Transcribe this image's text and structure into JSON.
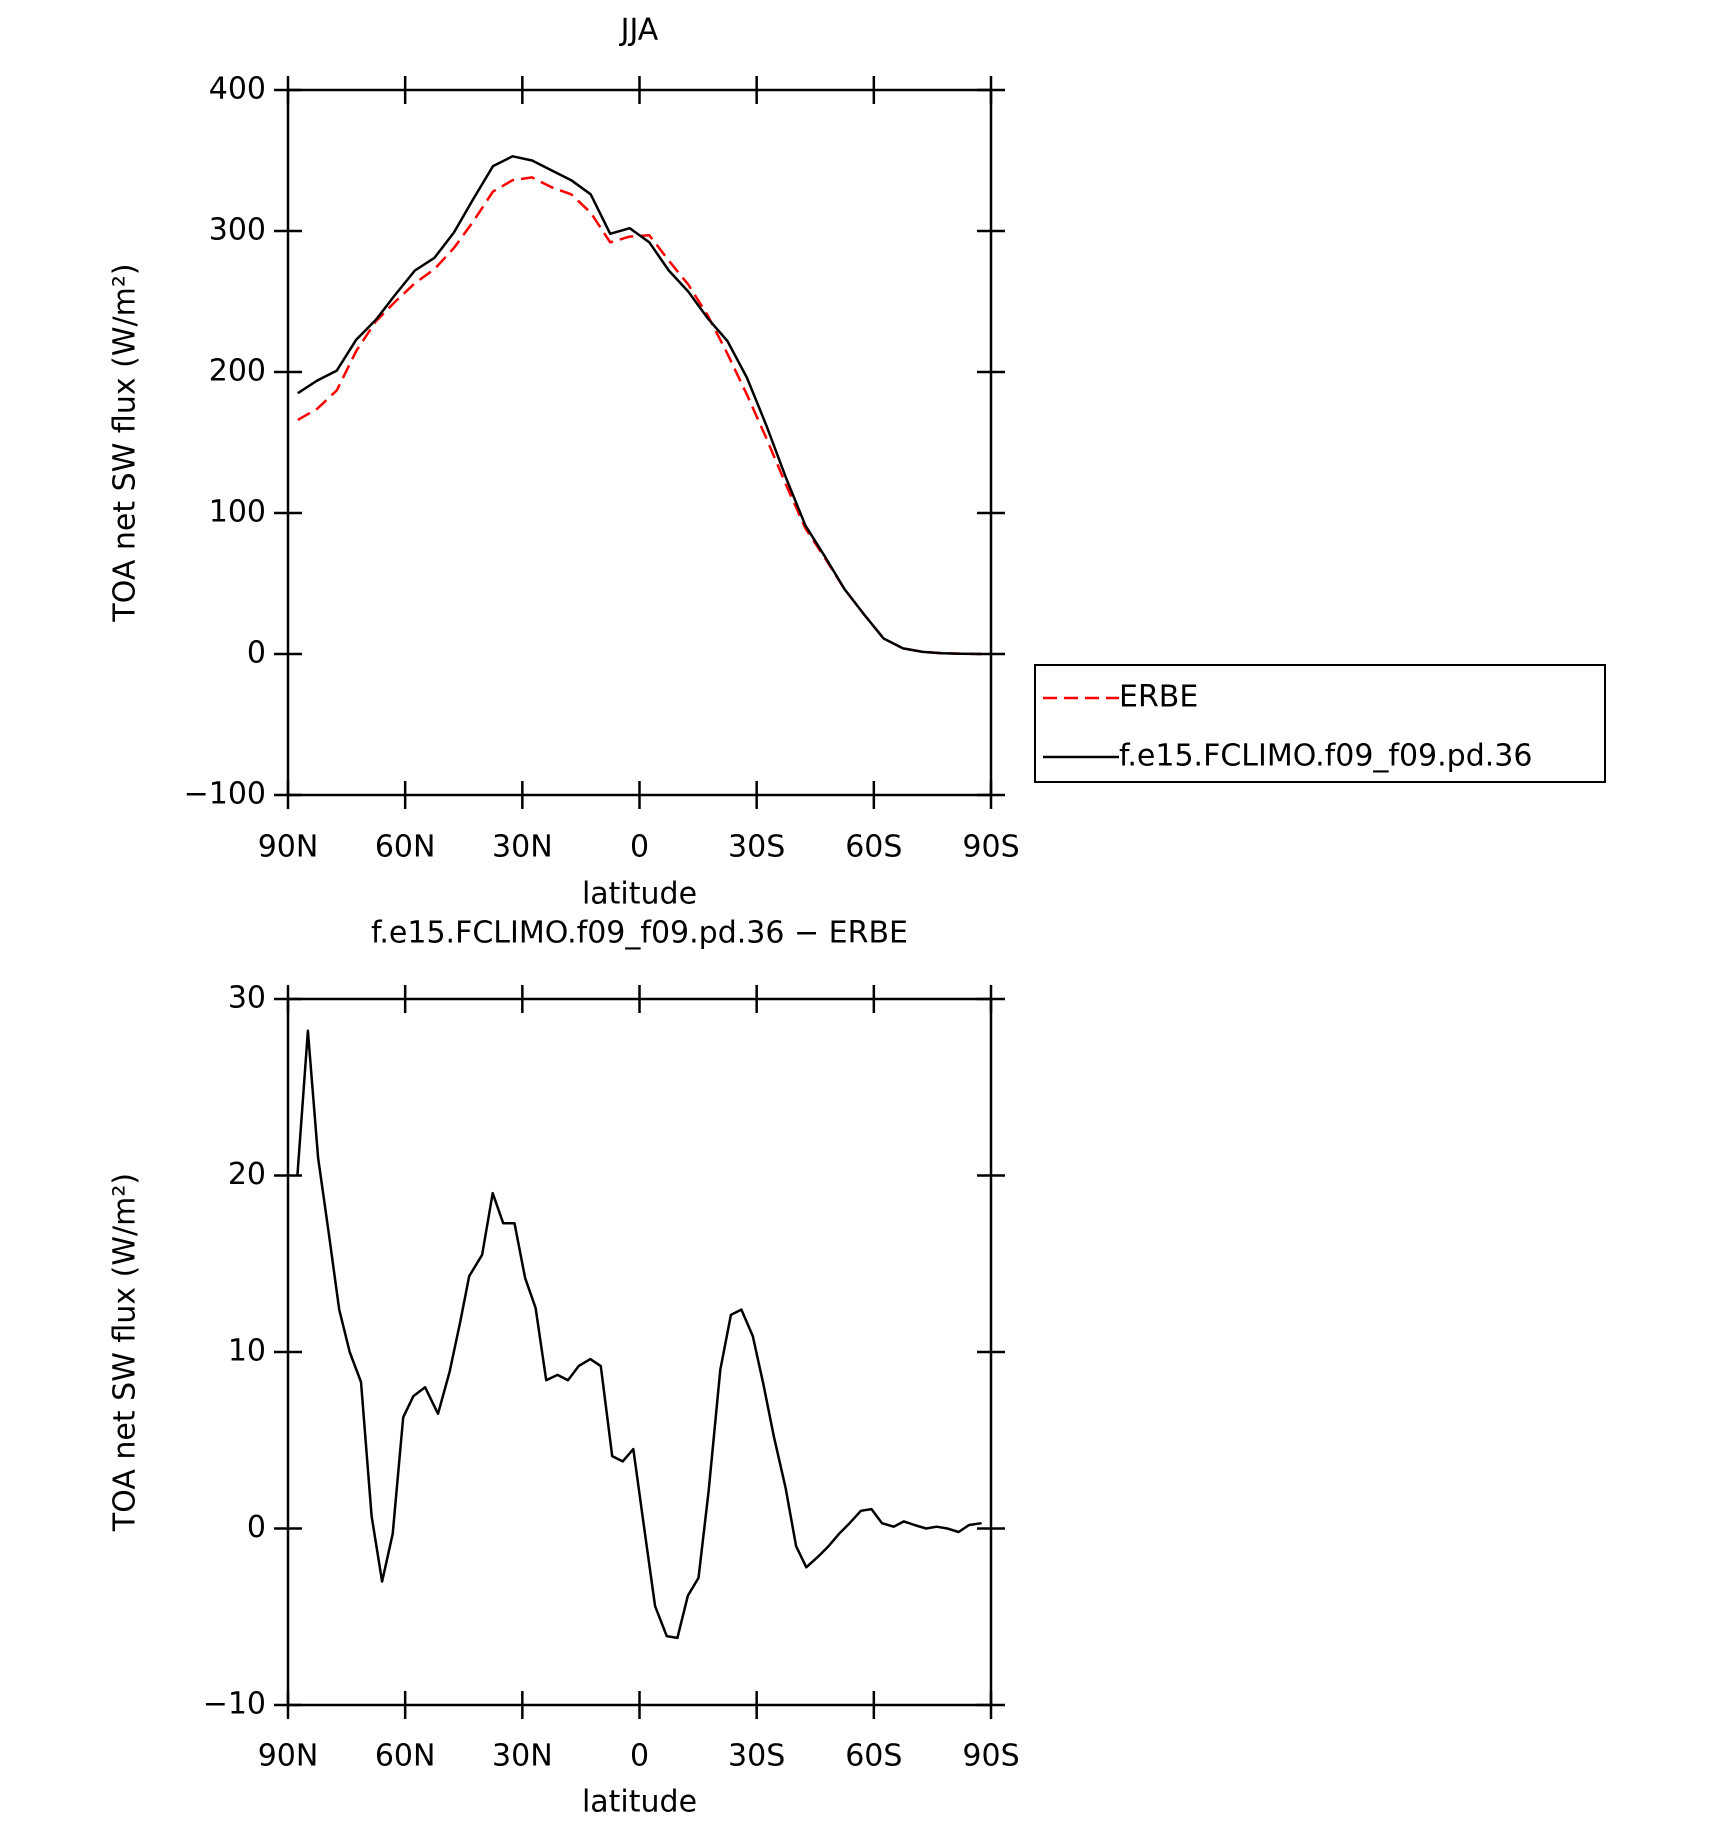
{
  "chart_data": [
    {
      "type": "line",
      "title": "JJA",
      "x_label": "latitude",
      "y_label": "TOA net SW flux (W/m²)",
      "x": [
        87.5,
        82.5,
        77.5,
        72.5,
        67.5,
        62.5,
        57.5,
        52.5,
        47.5,
        42.5,
        37.5,
        32.5,
        27.5,
        22.5,
        17.5,
        12.5,
        7.5,
        2.5,
        -2.5,
        -7.5,
        -12.5,
        -17.5,
        -22.5,
        -27.5,
        -32.5,
        -37.5,
        -42.5,
        -47.5,
        -52.5,
        -57.5,
        -62.5,
        -67.5,
        -72.5,
        -77.5,
        -82.5,
        -87.5
      ],
      "series": [
        {
          "name": "ERBE",
          "color": "#ff0000",
          "style": "dashed",
          "values": [
            166,
            174,
            187,
            215,
            236,
            250,
            263,
            273,
            288,
            307,
            328,
            336,
            338,
            331,
            326,
            313,
            292,
            296,
            297,
            279,
            262,
            240,
            213,
            184,
            153,
            120,
            89,
            68,
            46,
            28,
            11,
            4,
            1.5,
            0.5,
            0.2,
            0
          ]
        },
        {
          "name": "f.e15.FCLIMO.f09_f09.pd.36",
          "color": "#000000",
          "style": "solid",
          "values": [
            185,
            194,
            201,
            223,
            237,
            255,
            272,
            281,
            299,
            323,
            346,
            353,
            350,
            343,
            336,
            326,
            298,
            302,
            292,
            272,
            257,
            238,
            222,
            196,
            162,
            125,
            91,
            69,
            46,
            28,
            11,
            4,
            1.5,
            0.5,
            0.2,
            0
          ]
        }
      ],
      "xlim": [
        90,
        -90
      ],
      "xticks": [
        {
          "value": 90,
          "label": "90N"
        },
        {
          "value": 60,
          "label": "60N"
        },
        {
          "value": 30,
          "label": "30N"
        },
        0,
        {
          "value": -30,
          "label": "30S"
        },
        {
          "value": -60,
          "label": "60S"
        },
        {
          "value": -90,
          "label": "90S"
        }
      ],
      "ylim": [
        -100,
        400
      ],
      "yticks": [
        {
          "value": -100,
          "label": "−100"
        },
        0,
        100,
        200,
        300,
        400
      ],
      "legend": "outside-right"
    },
    {
      "type": "line",
      "title": "f.e15.FCLIMO.f09_f09.pd.36 − ERBE",
      "x_label": "latitude",
      "y_label": "TOA net SW flux (W/m²)",
      "x": [
        87.6,
        84.9,
        82.3,
        79.6,
        76.9,
        74.2,
        71.3,
        68.6,
        65.9,
        63.2,
        60.5,
        57.9,
        54.9,
        51.6,
        48.6,
        45.9,
        43.6,
        40.3,
        37.6,
        34.9,
        32.0,
        29.3,
        26.6,
        23.9,
        21.0,
        18.3,
        15.6,
        12.6,
        9.9,
        7.0,
        4.3,
        1.6,
        -1.4,
        -4.0,
        -7.0,
        -9.7,
        -12.4,
        -15.1,
        -17.7,
        -20.7,
        -23.4,
        -26.1,
        -29.0,
        -31.7,
        -34.4,
        -37.4,
        -40.1,
        -42.7,
        -45.7,
        -48.4,
        -51.1,
        -53.8,
        -56.7,
        -59.4,
        -62.1,
        -65.1,
        -67.7,
        -70.4,
        -73.4,
        -76.1,
        -78.8,
        -81.7,
        -84.4,
        -87.6
      ],
      "series": [
        {
          "color": "#000000",
          "style": "solid",
          "values": [
            20.0,
            28.2,
            21.0,
            16.8,
            12.4,
            10.0,
            8.3,
            0.7,
            -3.0,
            -0.3,
            6.3,
            7.5,
            8.0,
            6.5,
            8.9,
            11.7,
            14.3,
            15.5,
            19.0,
            17.3,
            17.3,
            14.2,
            12.5,
            8.4,
            8.7,
            8.4,
            9.2,
            9.6,
            9.2,
            4.1,
            3.8,
            4.5,
            -0.3,
            -4.4,
            -6.1,
            -6.2,
            -3.8,
            -2.8,
            2.1,
            9.0,
            12.1,
            12.4,
            10.9,
            8.2,
            5.2,
            2.3,
            -1.0,
            -2.2,
            -1.6,
            -1.0,
            -0.3,
            0.3,
            1.0,
            1.1,
            0.3,
            0.1,
            0.4,
            0.2,
            0.0,
            0.1,
            0.0,
            -0.2,
            0.2,
            0.3
          ]
        }
      ],
      "xlim": [
        90,
        -90
      ],
      "xticks": [
        {
          "value": 90,
          "label": "90N"
        },
        {
          "value": 60,
          "label": "60N"
        },
        {
          "value": 30,
          "label": "30N"
        },
        0,
        {
          "value": -30,
          "label": "30S"
        },
        {
          "value": -60,
          "label": "60S"
        },
        {
          "value": -90,
          "label": "90S"
        }
      ],
      "ylim": [
        -10,
        30
      ],
      "yticks": [
        {
          "value": -10,
          "label": "−10"
        },
        0,
        10,
        20,
        30
      ]
    }
  ]
}
